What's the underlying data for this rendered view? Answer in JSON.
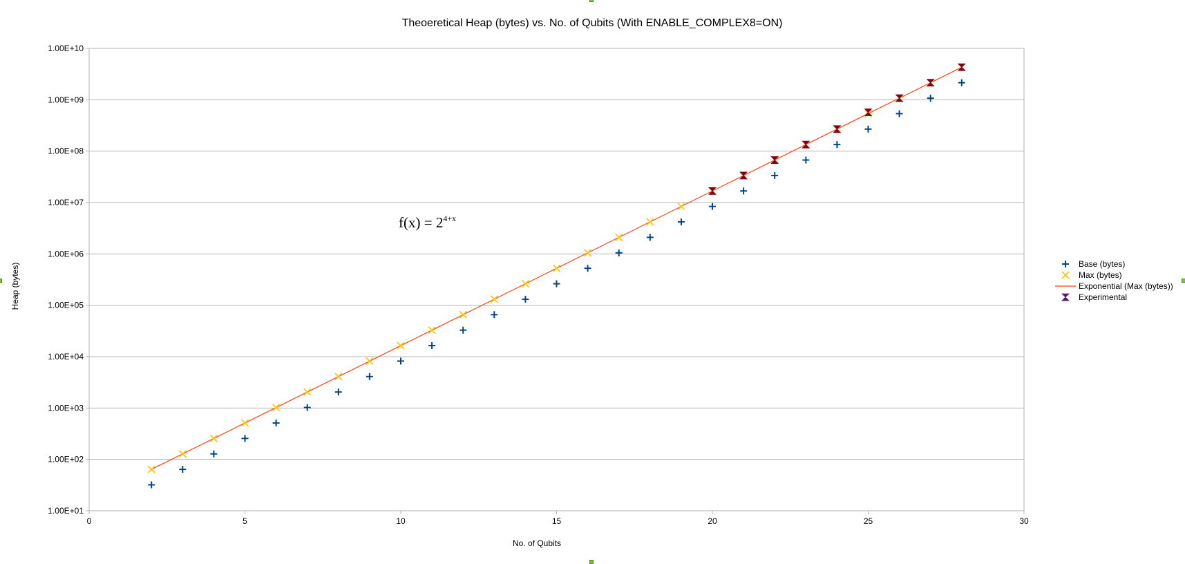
{
  "chart_data": {
    "type": "scatter",
    "title": "Theoeretical Heap (bytes) vs. No. of Qubits (With ENABLE_COMPLEX8=ON)",
    "xlabel": "No. of Qubits",
    "ylabel": "Heap (bytes)",
    "xlim": [
      0,
      30
    ],
    "ylim": [
      10,
      10000000000
    ],
    "yscale": "log",
    "grid": true,
    "legend_position": "right",
    "x_ticks": [
      "0",
      "5",
      "10",
      "15",
      "20",
      "25",
      "30"
    ],
    "y_ticks": [
      "1.00E+01",
      "1.00E+02",
      "1.00E+03",
      "1.00E+04",
      "1.00E+05",
      "1.00E+06",
      "1.00E+07",
      "1.00E+08",
      "1.00E+09",
      "1.00E+10"
    ],
    "annotation": {
      "base": "f(x) = 2",
      "exponent": "4+x"
    },
    "series": [
      {
        "name": "Base (bytes)",
        "marker": "plus",
        "color": "#004586",
        "x": [
          2,
          3,
          4,
          5,
          6,
          7,
          8,
          9,
          10,
          11,
          12,
          13,
          14,
          15,
          16,
          17,
          18,
          19,
          20,
          21,
          22,
          23,
          24,
          25,
          26,
          27,
          28
        ],
        "y": [
          32,
          64,
          128,
          256,
          512,
          1024,
          2048,
          4096,
          8192,
          16384,
          32768,
          65536,
          131072,
          262144,
          524288,
          1048576,
          2097152,
          4194304,
          8388608,
          16777216,
          33554432,
          67108864,
          134217728,
          268435456,
          536870912,
          1073741824,
          2147483648
        ]
      },
      {
        "name": "Max (bytes)",
        "marker": "x",
        "color": "#ffc000",
        "x": [
          2,
          3,
          4,
          5,
          6,
          7,
          8,
          9,
          10,
          11,
          12,
          13,
          14,
          15,
          16,
          17,
          18,
          19,
          20,
          21,
          22,
          23,
          24,
          25,
          26,
          27,
          28
        ],
        "y": [
          64,
          128,
          256,
          512,
          1024,
          2048,
          4096,
          8192,
          16384,
          32768,
          65536,
          131072,
          262144,
          524288,
          1048576,
          2097152,
          4194304,
          8388608,
          16777216,
          33554432,
          67108864,
          134217728,
          268435456,
          536870912,
          1073741824,
          2147483648,
          4294967296
        ]
      },
      {
        "name": "Exponential (Max (bytes))",
        "marker": "line",
        "color": "#ff420e",
        "x": [
          2,
          28
        ],
        "y": [
          64,
          4294967296
        ]
      },
      {
        "name": "Experimental",
        "marker": "bowtie",
        "color": "#7e0021",
        "legend_color": "#5a1a6e",
        "x": [
          20,
          21,
          22,
          23,
          24,
          25,
          26,
          27,
          28
        ],
        "y": [
          16777216,
          33554432,
          67108864,
          134217728,
          268435456,
          570000000,
          1073741824,
          2147483648,
          4294967296
        ]
      }
    ]
  }
}
